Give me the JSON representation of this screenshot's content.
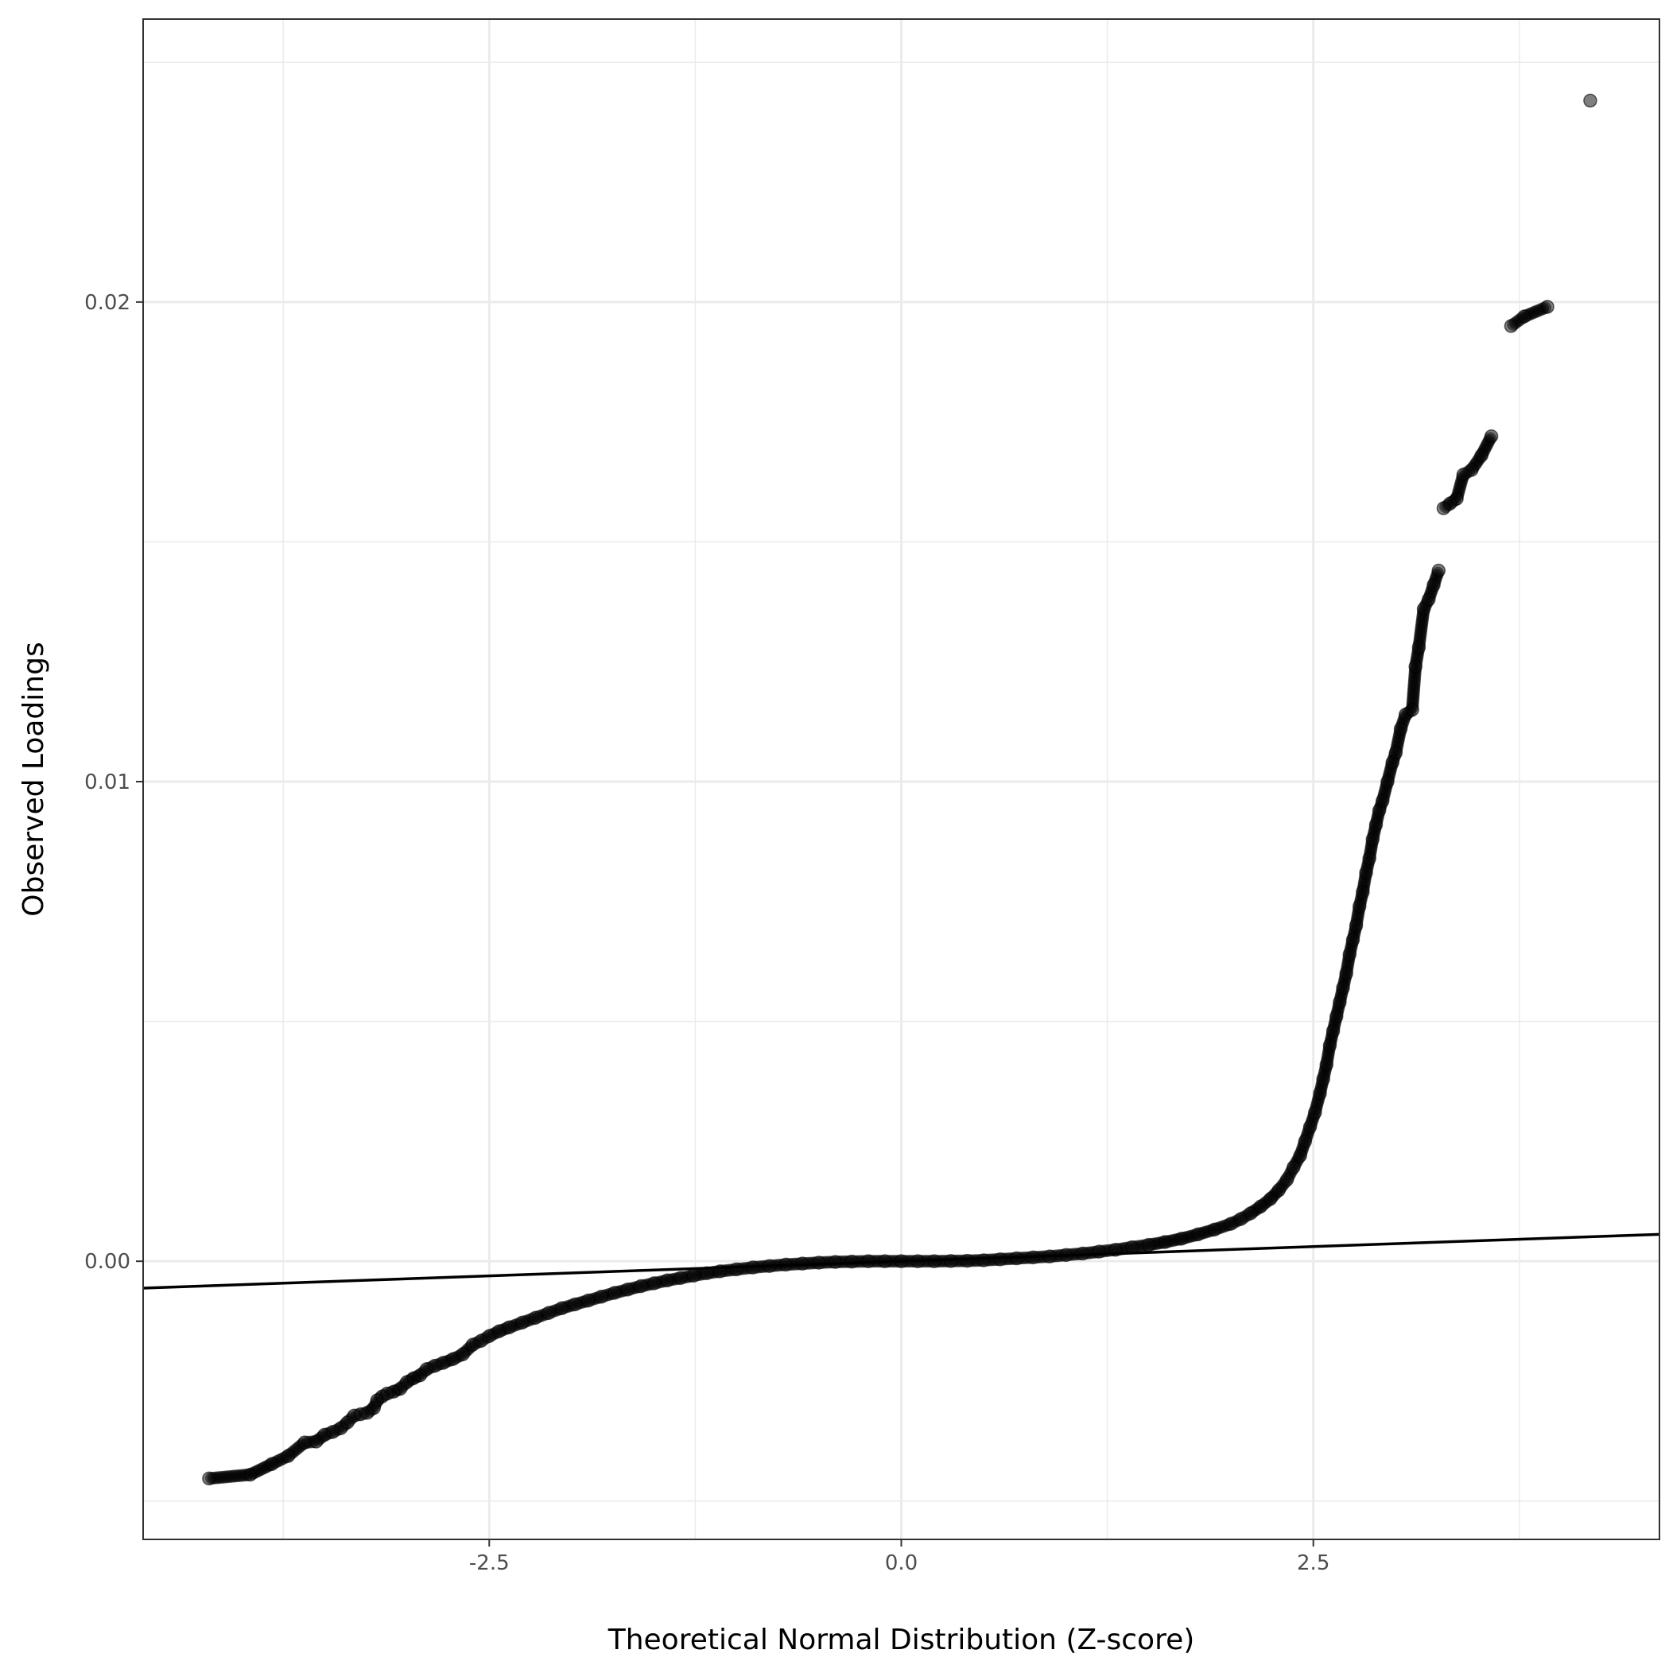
{
  "chart_data": {
    "type": "scatter",
    "title": "",
    "xlabel": "Theoretical Normal Distribution (Z-score)",
    "ylabel": "Observed Loadings",
    "xlim": [
      -4.6,
      4.6
    ],
    "ylim": [
      -0.0058,
      0.0259
    ],
    "x_ticks": [
      {
        "value": -2.5,
        "label": "-2.5"
      },
      {
        "value": 0.0,
        "label": "0.0"
      },
      {
        "value": 2.5,
        "label": "2.5"
      }
    ],
    "y_ticks": [
      {
        "value": 0.0,
        "label": "0.00"
      },
      {
        "value": 0.01,
        "label": "0.01"
      },
      {
        "value": 0.02,
        "label": "0.02"
      }
    ],
    "grid": true,
    "reference_line": {
      "intercept": 0.0,
      "slope": 0.000122
    },
    "point_color": "#000000",
    "point_alpha": 0.5,
    "line_color": "#000000",
    "grid_color": "#ebebeb",
    "series": [
      {
        "points": [
          [
            -4.2,
            -0.00453
          ],
          [
            -3.95,
            -0.00445
          ],
          [
            -3.82,
            -0.00423
          ],
          [
            -3.72,
            -0.00406
          ],
          [
            -3.62,
            -0.00378
          ],
          [
            -3.55,
            -0.00376
          ],
          [
            -3.5,
            -0.00362
          ],
          [
            -3.45,
            -0.00356
          ],
          [
            -3.4,
            -0.00348
          ],
          [
            -3.36,
            -0.00336
          ],
          [
            -3.32,
            -0.00322
          ],
          [
            -3.28,
            -0.00319
          ],
          [
            -3.24,
            -0.00316
          ],
          [
            -3.2,
            -0.00306
          ],
          [
            -3.18,
            -0.0029
          ],
          [
            -3.15,
            -0.00282
          ],
          [
            -3.12,
            -0.00276
          ],
          [
            -3.08,
            -0.00272
          ],
          [
            -3.04,
            -0.00266
          ],
          [
            -3.0,
            -0.00252
          ],
          [
            -2.96,
            -0.00244
          ],
          [
            -2.92,
            -0.00238
          ],
          [
            -2.88,
            -0.00225
          ],
          [
            -2.83,
            -0.00218
          ],
          [
            -2.78,
            -0.00212
          ],
          [
            -2.72,
            -0.00204
          ],
          [
            -2.66,
            -0.00194
          ],
          [
            -2.6,
            -0.00174
          ],
          [
            -2.55,
            -0.00166
          ],
          [
            -2.5,
            -0.00156
          ],
          [
            -2.44,
            -0.00146
          ],
          [
            -2.38,
            -0.00138
          ],
          [
            -2.3,
            -0.00128
          ],
          [
            -2.22,
            -0.00118
          ],
          [
            -2.14,
            -0.00108
          ],
          [
            -2.06,
            -0.00098
          ],
          [
            -1.98,
            -0.0009
          ],
          [
            -1.9,
            -0.00082
          ],
          [
            -1.82,
            -0.00074
          ],
          [
            -1.74,
            -0.00066
          ],
          [
            -1.66,
            -0.00059
          ],
          [
            -1.58,
            -0.00052
          ],
          [
            -1.5,
            -0.00046
          ],
          [
            -1.42,
            -0.0004
          ],
          [
            -1.34,
            -0.00035
          ],
          [
            -1.26,
            -0.0003
          ],
          [
            -1.18,
            -0.00025
          ],
          [
            -1.1,
            -0.00021
          ],
          [
            -1.0,
            -0.00017
          ],
          [
            -0.9,
            -0.00013
          ],
          [
            -0.8,
            -0.0001
          ],
          [
            -0.7,
            -7e-05
          ],
          [
            -0.6,
            -5e-05
          ],
          [
            -0.5,
            -3e-05
          ],
          [
            -0.4,
            -1.5e-05
          ],
          [
            -0.3,
            -8e-06
          ],
          [
            -0.2,
            0.0
          ],
          [
            -0.1,
            0.0
          ],
          [
            0.0,
            0.0
          ],
          [
            0.1,
            0.0
          ],
          [
            0.2,
            0.0
          ],
          [
            0.3,
            4e-06
          ],
          [
            0.4,
            1e-05
          ],
          [
            0.5,
            2e-05
          ],
          [
            0.6,
            4e-05
          ],
          [
            0.7,
            6e-05
          ],
          [
            0.8,
            8e-05
          ],
          [
            0.9,
            0.0001
          ],
          [
            1.0,
            0.00013
          ],
          [
            1.1,
            0.00016
          ],
          [
            1.2,
            0.0002
          ],
          [
            1.3,
            0.00024
          ],
          [
            1.4,
            0.00029
          ],
          [
            1.5,
            0.00034
          ],
          [
            1.6,
            0.0004
          ],
          [
            1.7,
            0.00047
          ],
          [
            1.8,
            0.00056
          ],
          [
            1.9,
            0.00066
          ],
          [
            2.0,
            0.00078
          ],
          [
            2.06,
            0.00088
          ],
          [
            2.12,
            0.001
          ],
          [
            2.18,
            0.00114
          ],
          [
            2.24,
            0.0013
          ],
          [
            2.29,
            0.00148
          ],
          [
            2.34,
            0.0017
          ],
          [
            2.38,
            0.00196
          ],
          [
            2.42,
            0.0022
          ],
          [
            2.45,
            0.0025
          ],
          [
            2.48,
            0.0028
          ],
          [
            2.51,
            0.0031
          ],
          [
            2.54,
            0.0035
          ],
          [
            2.56,
            0.0038
          ],
          [
            2.58,
            0.0041
          ],
          [
            2.6,
            0.0045
          ],
          [
            2.62,
            0.0048
          ],
          [
            2.64,
            0.0051
          ],
          [
            2.66,
            0.0054
          ],
          [
            2.68,
            0.0057
          ],
          [
            2.7,
            0.006
          ],
          [
            2.72,
            0.0064
          ],
          [
            2.74,
            0.0067
          ],
          [
            2.76,
            0.007
          ],
          [
            2.78,
            0.0074
          ],
          [
            2.8,
            0.0077
          ],
          [
            2.82,
            0.0081
          ],
          [
            2.84,
            0.0084
          ],
          [
            2.86,
            0.0088
          ],
          [
            2.88,
            0.0091
          ],
          [
            2.9,
            0.0094
          ],
          [
            2.92,
            0.0096
          ],
          [
            2.95,
            0.01
          ],
          [
            2.98,
            0.0104
          ],
          [
            3.0,
            0.0106
          ],
          [
            3.03,
            0.0111
          ],
          [
            3.06,
            0.0114
          ],
          [
            3.1,
            0.0115
          ],
          [
            3.12,
            0.0124
          ],
          [
            3.14,
            0.0128
          ],
          [
            3.17,
            0.0136
          ],
          [
            3.2,
            0.0138
          ],
          [
            3.23,
            0.0141
          ],
          [
            3.26,
            0.0144
          ],
          [
            3.29,
            0.0157
          ],
          [
            3.33,
            0.0158
          ],
          [
            3.37,
            0.0159
          ],
          [
            3.41,
            0.0164
          ],
          [
            3.46,
            0.0165
          ],
          [
            3.52,
            0.0168
          ],
          [
            3.58,
            0.0172
          ],
          [
            3.7,
            0.0195
          ],
          [
            3.78,
            0.0197
          ],
          [
            3.92,
            0.0199
          ],
          [
            4.18,
            0.0242
          ]
        ]
      }
    ]
  }
}
